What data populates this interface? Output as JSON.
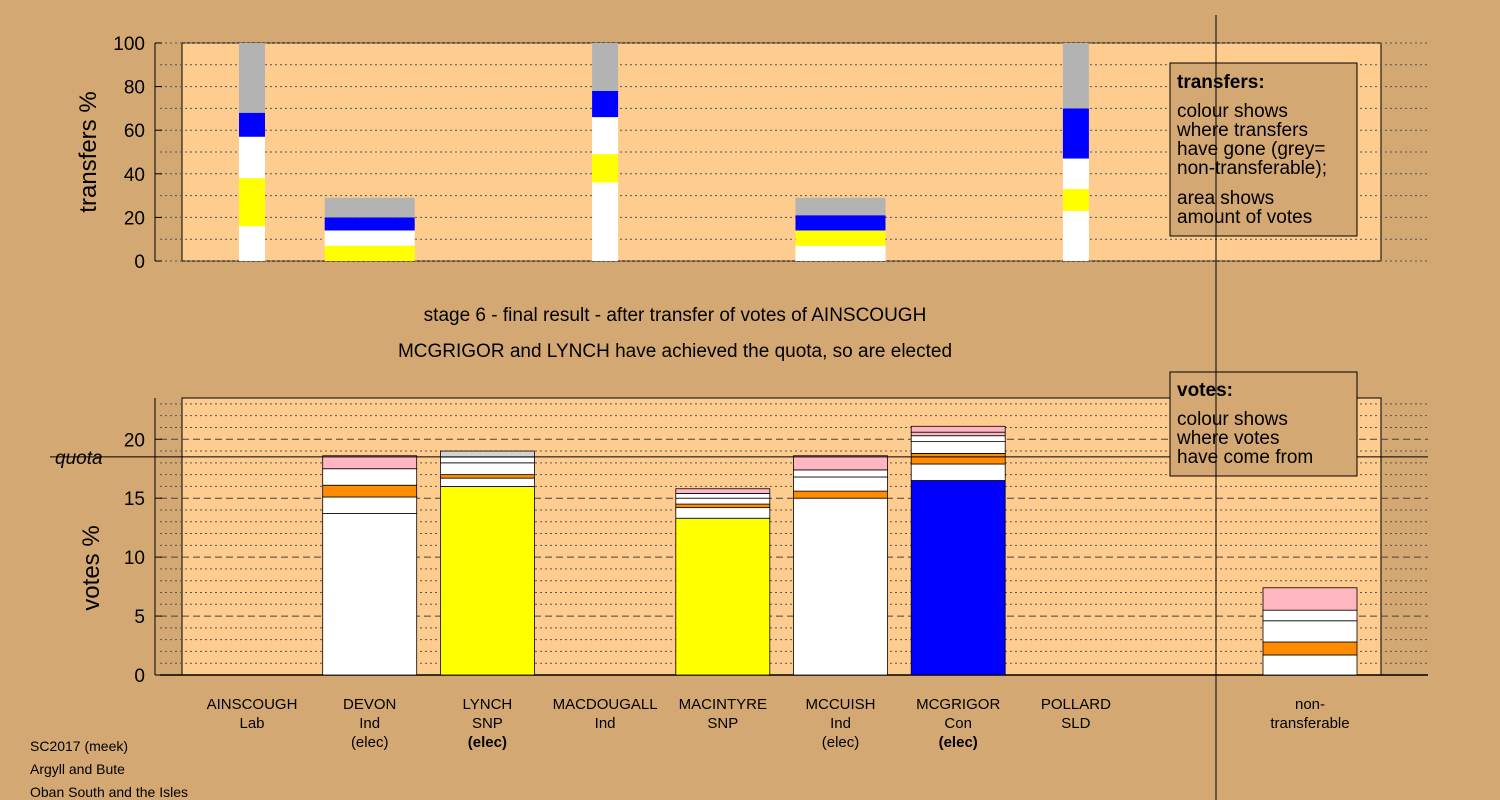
{
  "titles": {
    "stage": "stage 6 - final result - after transfer of votes of AINSCOUGH",
    "elected": "MCGRIGOR and LYNCH have achieved the quota, so are elected"
  },
  "footer": [
    "SC2017 (meek)",
    "Argyll and Bute",
    "Oban South and the Isles"
  ],
  "colors": {
    "background": "#d4a872",
    "plot_bg": "#ffcc8f",
    "grey": "#b3b3b3",
    "blue": "#0000ff",
    "white": "#ffffff",
    "yellow": "#ffff00",
    "orange": "#ff8c00",
    "pink": "#ffb6c1",
    "lightgrey": "#d3d3d3"
  },
  "chart_data": [
    {
      "type": "bar",
      "name": "transfers",
      "ylabel": "transfers %",
      "ylim": [
        0,
        100
      ],
      "yticks": [
        0,
        20,
        40,
        60,
        80,
        100
      ],
      "legend": {
        "title": "transfers:",
        "lines1": [
          "colour shows",
          "where transfers",
          "have gone (grey=",
          "non-transferable);"
        ],
        "lines2": [
          "area shows",
          "amount of votes"
        ],
        "position": "top-right"
      },
      "bars": [
        {
          "slot": 0,
          "narrow": true,
          "segments": [
            {
              "color": "white",
              "from": 0,
              "to": 16
            },
            {
              "color": "yellow",
              "from": 16,
              "to": 38
            },
            {
              "color": "white",
              "from": 38,
              "to": 57
            },
            {
              "color": "blue",
              "from": 57,
              "to": 68
            },
            {
              "color": "grey",
              "from": 68,
              "to": 100
            }
          ]
        },
        {
          "slot": 1,
          "narrow": false,
          "segments": [
            {
              "color": "yellow",
              "from": 0,
              "to": 7
            },
            {
              "color": "white",
              "from": 7,
              "to": 14
            },
            {
              "color": "blue",
              "from": 14,
              "to": 20
            },
            {
              "color": "grey",
              "from": 20,
              "to": 29
            }
          ]
        },
        {
          "slot": 3,
          "narrow": true,
          "segments": [
            {
              "color": "white",
              "from": 0,
              "to": 36
            },
            {
              "color": "yellow",
              "from": 36,
              "to": 49
            },
            {
              "color": "white",
              "from": 49,
              "to": 66
            },
            {
              "color": "blue",
              "from": 66,
              "to": 78
            },
            {
              "color": "grey",
              "from": 78,
              "to": 100
            }
          ]
        },
        {
          "slot": 5,
          "narrow": false,
          "segments": [
            {
              "color": "white",
              "from": 0,
              "to": 7
            },
            {
              "color": "yellow",
              "from": 7,
              "to": 14
            },
            {
              "color": "blue",
              "from": 14,
              "to": 21
            },
            {
              "color": "grey",
              "from": 21,
              "to": 29
            }
          ]
        },
        {
          "slot": 7,
          "narrow": true,
          "segments": [
            {
              "color": "white",
              "from": 0,
              "to": 23
            },
            {
              "color": "yellow",
              "from": 23,
              "to": 33
            },
            {
              "color": "white",
              "from": 33,
              "to": 47
            },
            {
              "color": "blue",
              "from": 47,
              "to": 70
            },
            {
              "color": "grey",
              "from": 70,
              "to": 100
            }
          ]
        }
      ]
    },
    {
      "type": "bar",
      "name": "votes",
      "ylabel": "votes %",
      "ylim": [
        0,
        23.5
      ],
      "yticks": [
        0,
        5,
        10,
        15,
        20
      ],
      "quota": 18.5,
      "quota_label": "quota",
      "legend": {
        "title": "votes:",
        "lines": [
          "colour shows",
          "where votes",
          "have come from"
        ],
        "position": "top-right"
      },
      "categories": [
        {
          "name": "AINSCOUGH",
          "party": "Lab",
          "status": ""
        },
        {
          "name": "DEVON",
          "party": "Ind",
          "status": "(elec)"
        },
        {
          "name": "LYNCH",
          "party": "SNP",
          "status": "(elec)",
          "bold_status": true
        },
        {
          "name": "MACDOUGALL",
          "party": "Ind",
          "status": ""
        },
        {
          "name": "MACINTYRE",
          "party": "SNP",
          "status": ""
        },
        {
          "name": "MCCUISH",
          "party": "Ind",
          "status": "(elec)"
        },
        {
          "name": "MCGRIGOR",
          "party": "Con",
          "status": "(elec)",
          "bold_status": true
        },
        {
          "name": "POLLARD",
          "party": "SLD",
          "status": ""
        }
      ],
      "nontransferable_label": [
        "non-",
        "transferable"
      ],
      "bars": [
        {
          "slot": 1,
          "segments": [
            {
              "color": "white",
              "from": 0,
              "to": 13.7
            },
            {
              "color": "white",
              "from": 13.7,
              "to": 15.1
            },
            {
              "color": "orange",
              "from": 15.1,
              "to": 16.1
            },
            {
              "color": "white",
              "from": 16.1,
              "to": 17.5
            },
            {
              "color": "pink",
              "from": 17.5,
              "to": 18.6
            }
          ]
        },
        {
          "slot": 2,
          "segments": [
            {
              "color": "yellow",
              "from": 0,
              "to": 16.0
            },
            {
              "color": "white",
              "from": 16.0,
              "to": 16.7
            },
            {
              "color": "orange",
              "from": 16.7,
              "to": 17.0
            },
            {
              "color": "white",
              "from": 17.0,
              "to": 18.0
            },
            {
              "color": "white",
              "from": 18.0,
              "to": 18.5
            },
            {
              "color": "lightgrey",
              "from": 18.5,
              "to": 19.0
            }
          ]
        },
        {
          "slot": 4,
          "segments": [
            {
              "color": "yellow",
              "from": 0,
              "to": 13.3
            },
            {
              "color": "white",
              "from": 13.3,
              "to": 14.2
            },
            {
              "color": "orange",
              "from": 14.2,
              "to": 14.5
            },
            {
              "color": "white",
              "from": 14.5,
              "to": 15.0
            },
            {
              "color": "white",
              "from": 15.0,
              "to": 15.4
            },
            {
              "color": "pink",
              "from": 15.4,
              "to": 15.8
            }
          ]
        },
        {
          "slot": 5,
          "segments": [
            {
              "color": "white",
              "from": 0,
              "to": 15.0
            },
            {
              "color": "orange",
              "from": 15.0,
              "to": 15.6
            },
            {
              "color": "white",
              "from": 15.6,
              "to": 16.8
            },
            {
              "color": "white",
              "from": 16.8,
              "to": 17.4
            },
            {
              "color": "pink",
              "from": 17.4,
              "to": 18.6
            }
          ]
        },
        {
          "slot": 6,
          "segments": [
            {
              "color": "blue",
              "from": 0,
              "to": 16.5
            },
            {
              "color": "white",
              "from": 16.5,
              "to": 17.9
            },
            {
              "color": "orange",
              "from": 17.9,
              "to": 18.8
            },
            {
              "color": "white",
              "from": 18.8,
              "to": 19.8
            },
            {
              "color": "white",
              "from": 19.8,
              "to": 20.3
            },
            {
              "color": "pink",
              "from": 20.3,
              "to": 20.6
            },
            {
              "color": "pink",
              "from": 20.6,
              "to": 21.1
            }
          ]
        },
        {
          "slot": "nt",
          "segments": [
            {
              "color": "white",
              "from": 0,
              "to": 1.7
            },
            {
              "color": "orange",
              "from": 1.7,
              "to": 2.8
            },
            {
              "color": "white",
              "from": 2.8,
              "to": 4.6
            },
            {
              "color": "white",
              "from": 4.6,
              "to": 5.5
            },
            {
              "color": "pink",
              "from": 5.5,
              "to": 7.4
            }
          ]
        }
      ]
    }
  ]
}
